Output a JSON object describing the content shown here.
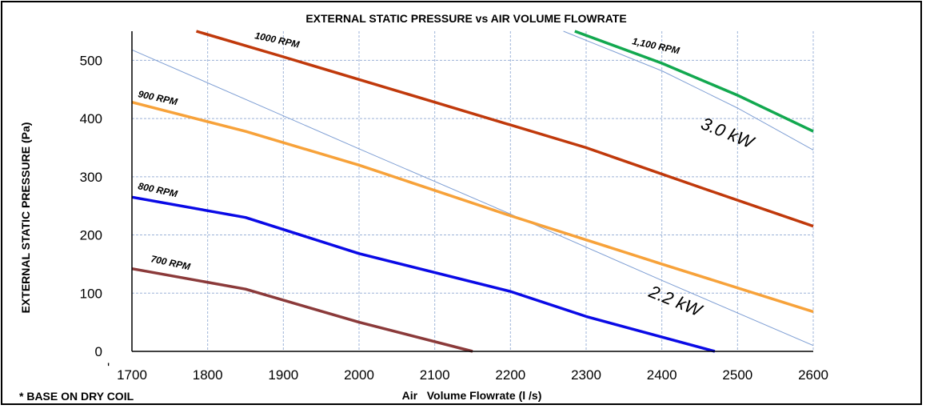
{
  "chart_data": {
    "type": "line",
    "title": "EXTERNAL STATIC PRESSURE vs AIR VOLUME FLOWRATE",
    "xlabel": "Air   Volume Flowrate (l /s)",
    "ylabel": "EXTERNAL STATIC PRESSURE (Pa)",
    "xlim": [
      1700,
      2600
    ],
    "ylim": [
      0,
      550
    ],
    "x_ticks": [
      "1700",
      "1800",
      "1900",
      "2000",
      "2100",
      "2200",
      "2300",
      "2400",
      "2500",
      "2600"
    ],
    "y_ticks": [
      "0",
      "100",
      "200",
      "300",
      "400",
      "500"
    ],
    "grid": true,
    "series": [
      {
        "name": "700 RPM",
        "color": "#8B3A3A",
        "points": [
          [
            1700,
            142
          ],
          [
            1850,
            107
          ],
          [
            2000,
            50
          ],
          [
            2150,
            0
          ]
        ]
      },
      {
        "name": "800 RPM",
        "color": "#0A0AE6",
        "points": [
          [
            1700,
            265
          ],
          [
            1850,
            230
          ],
          [
            2000,
            168
          ],
          [
            2200,
            103
          ],
          [
            2300,
            60
          ],
          [
            2470,
            0
          ]
        ]
      },
      {
        "name": "900 RPM",
        "color": "#F7A23A",
        "points": [
          [
            1700,
            428
          ],
          [
            1850,
            378
          ],
          [
            2000,
            320
          ],
          [
            2200,
            233
          ],
          [
            2400,
            150
          ],
          [
            2600,
            68
          ]
        ]
      },
      {
        "name": "1000 RPM",
        "color": "#C0390B",
        "points": [
          [
            1785,
            550
          ],
          [
            1900,
            506
          ],
          [
            2100,
            428
          ],
          [
            2300,
            350
          ],
          [
            2450,
            282
          ],
          [
            2600,
            215
          ]
        ]
      },
      {
        "name": "1,100 RPM",
        "color": "#12A84F",
        "points": [
          [
            2285,
            550
          ],
          [
            2400,
            495
          ],
          [
            2500,
            440
          ],
          [
            2600,
            378
          ]
        ]
      }
    ],
    "power_lines": [
      {
        "name": "2.2 kW",
        "color": "#7F9FD4",
        "points": [
          [
            1700,
            518
          ],
          [
            2000,
            348
          ],
          [
            2200,
            236
          ],
          [
            2400,
            122
          ],
          [
            2600,
            10
          ]
        ]
      },
      {
        "name": "3.0 kW",
        "color": "#7F9FD4",
        "points": [
          [
            2270,
            550
          ],
          [
            2400,
            482
          ],
          [
            2500,
            418
          ],
          [
            2600,
            346
          ]
        ]
      }
    ],
    "note": "* BASE ON DRY COIL",
    "stray_mark": "'"
  }
}
